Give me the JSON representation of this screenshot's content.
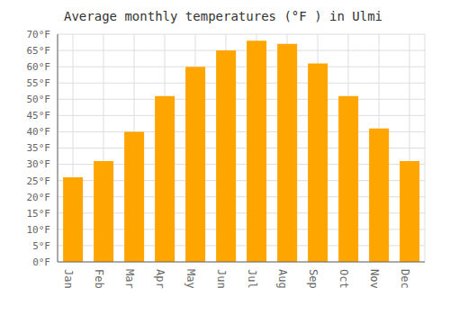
{
  "chart_data": {
    "type": "bar",
    "title": "Average monthly temperatures (°F ) in Ulmi",
    "categories": [
      "Jan",
      "Feb",
      "Mar",
      "Apr",
      "May",
      "Jun",
      "Jul",
      "Aug",
      "Sep",
      "Oct",
      "Nov",
      "Dec"
    ],
    "values": [
      26,
      31,
      40,
      51,
      60,
      65,
      68,
      67,
      61,
      51,
      41,
      31
    ],
    "color": "#FFA500",
    "ylim": [
      0,
      70
    ],
    "yticks": [
      {
        "value": 0,
        "label": "0°F"
      },
      {
        "value": 5,
        "label": "5°F"
      },
      {
        "value": 10,
        "label": "10°F"
      },
      {
        "value": 15,
        "label": "15°F"
      },
      {
        "value": 20,
        "label": "20°F"
      },
      {
        "value": 25,
        "label": "25°F"
      },
      {
        "value": 30,
        "label": "30°F"
      },
      {
        "value": 35,
        "label": "35°F"
      },
      {
        "value": 40,
        "label": "40°F"
      },
      {
        "value": 45,
        "label": "45°F"
      },
      {
        "value": 50,
        "label": "50°F"
      },
      {
        "value": 55,
        "label": "55°F"
      },
      {
        "value": 60,
        "label": "60°F"
      },
      {
        "value": 65,
        "label": "65°F"
      },
      {
        "value": 70,
        "label": "70°F"
      }
    ],
    "grid": true
  }
}
